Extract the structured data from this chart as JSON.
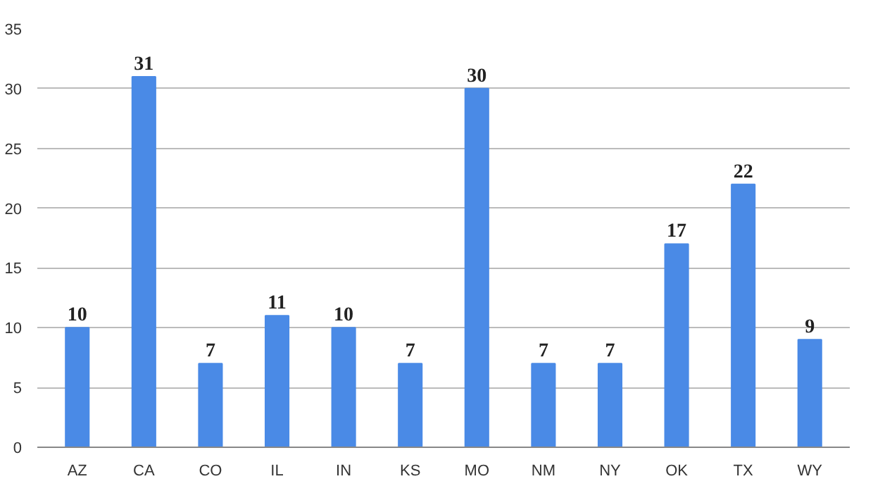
{
  "chart_data": {
    "type": "bar",
    "categories": [
      "AZ",
      "CA",
      "CO",
      "IL",
      "IN",
      "KS",
      "MO",
      "NM",
      "NY",
      "OK",
      "TX",
      "WY"
    ],
    "values": [
      10,
      31,
      7,
      11,
      10,
      7,
      30,
      7,
      7,
      17,
      22,
      9
    ],
    "color": "#4a8ae6",
    "ylim": [
      0,
      35
    ],
    "yticks": [
      0,
      5,
      10,
      15,
      20,
      25,
      30,
      35
    ],
    "grid": "y",
    "data_labels": true
  }
}
